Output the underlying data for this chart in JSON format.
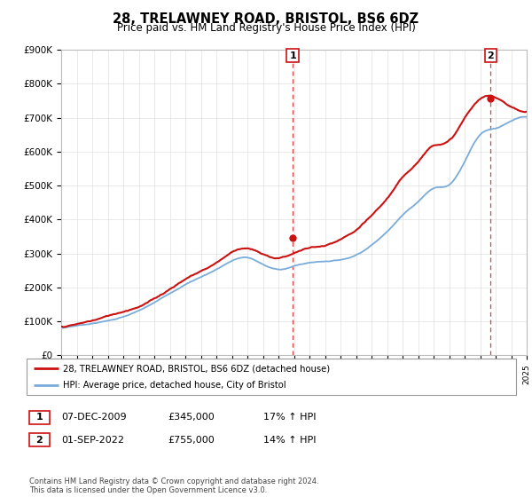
{
  "title": "28, TRELAWNEY ROAD, BRISTOL, BS6 6DZ",
  "subtitle": "Price paid vs. HM Land Registry's House Price Index (HPI)",
  "ylim": [
    0,
    900000
  ],
  "yticks": [
    0,
    100000,
    200000,
    300000,
    400000,
    500000,
    600000,
    700000,
    800000,
    900000
  ],
  "ytick_labels": [
    "£0",
    "£100K",
    "£200K",
    "£300K",
    "£400K",
    "£500K",
    "£600K",
    "£700K",
    "£800K",
    "£900K"
  ],
  "sale1_date": 2009.92,
  "sale1_price": 345000,
  "sale1_label": "1",
  "sale2_date": 2022.67,
  "sale2_price": 755000,
  "sale2_label": "2",
  "hpi_color": "#7aacda",
  "price_color": "#cc1111",
  "vline_color": "#cc1111",
  "grid_color": "#e0e0e0",
  "legend_label_price": "28, TRELAWNEY ROAD, BRISTOL, BS6 6DZ (detached house)",
  "legend_label_hpi": "HPI: Average price, detached house, City of Bristol",
  "table_row1": [
    "1",
    "07-DEC-2009",
    "£345,000",
    "17% ↑ HPI"
  ],
  "table_row2": [
    "2",
    "01-SEP-2022",
    "£755,000",
    "14% ↑ HPI"
  ],
  "footnote": "Contains HM Land Registry data © Crown copyright and database right 2024.\nThis data is licensed under the Open Government Licence v3.0.",
  "xmin": 1995,
  "xmax": 2025
}
